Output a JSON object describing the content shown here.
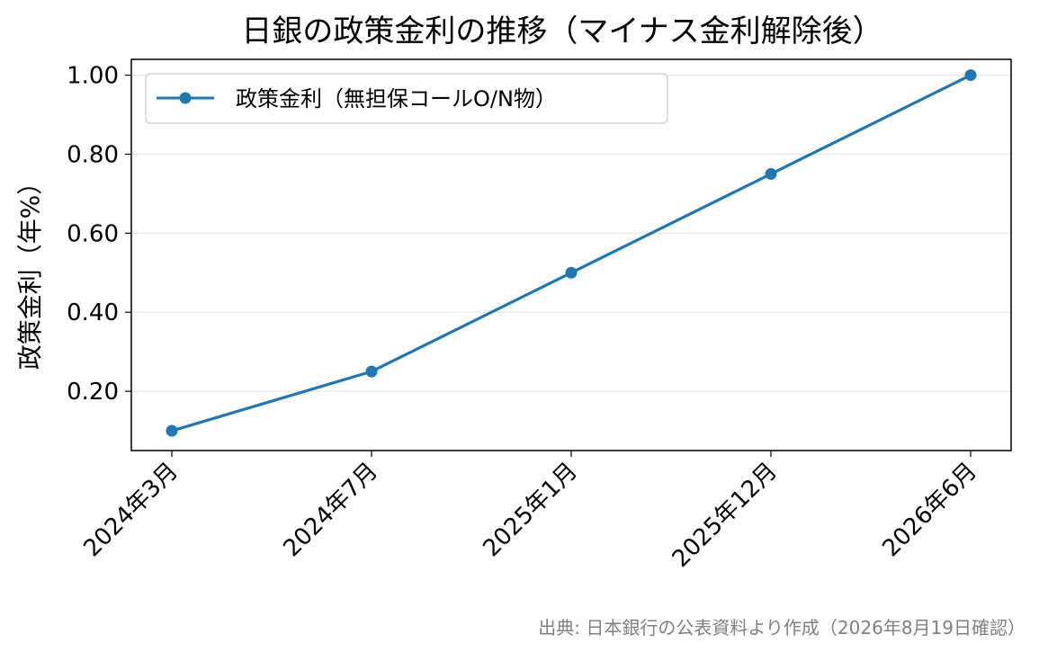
{
  "chart_data": {
    "type": "line",
    "title": "日銀の政策金利の推移（マイナス金利解除後）",
    "xlabel": "",
    "ylabel": "政策金利（年%）",
    "categories": [
      "2024年3月",
      "2024年7月",
      "2025年1月",
      "2025年12月",
      "2026年6月"
    ],
    "series": [
      {
        "name": "政策金利（無担保コールO/N物）",
        "values": [
          0.1,
          0.25,
          0.5,
          0.75,
          1.0
        ],
        "color": "#1f77b4",
        "marker": "circle"
      }
    ],
    "yticks": [
      "0.20",
      "0.40",
      "0.60",
      "0.80",
      "1.00"
    ],
    "ylim": [
      0.05,
      1.04
    ],
    "grid": "horizontal",
    "legend": "top-left",
    "source_note": "出典: 日本銀行の公表資料より作成（2026年8月19日確認）"
  }
}
